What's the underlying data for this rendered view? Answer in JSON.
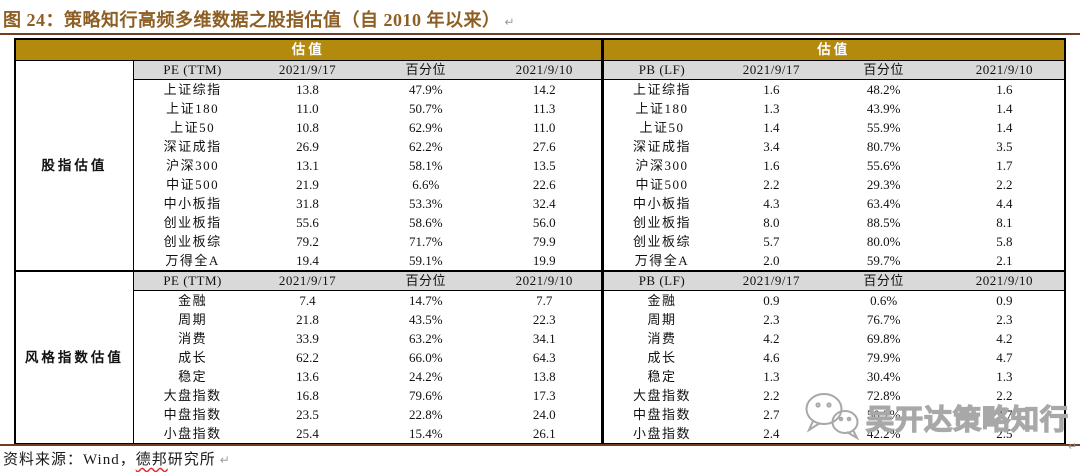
{
  "title": {
    "text": "图 24：策略知行高频多维数据之股指估值（自 2010 年以来）",
    "return_mark": "↵"
  },
  "colors": {
    "accent_gold": "#B3890E",
    "title_brown": "#8E5F24",
    "rule_brown": "#713E22",
    "header_gray": "#D9D9D9"
  },
  "table": {
    "band_left": "估值",
    "band_right": "估值",
    "sections": [
      {
        "name": "股指估值",
        "left_header": [
          "PE (TTM)",
          "2021/9/17",
          "百分位",
          "2021/9/10"
        ],
        "right_header": [
          "PB (LF)",
          "2021/9/17",
          "百分位",
          "2021/9/10"
        ],
        "rows": [
          {
            "label": "上证综指",
            "pe": [
              "13.8",
              "47.9%",
              "14.2"
            ],
            "pb": [
              "1.6",
              "48.2%",
              "1.6"
            ]
          },
          {
            "label": "上证180",
            "pe": [
              "11.0",
              "50.7%",
              "11.3"
            ],
            "pb": [
              "1.3",
              "43.9%",
              "1.4"
            ]
          },
          {
            "label": "上证50",
            "pe": [
              "10.8",
              "62.9%",
              "11.0"
            ],
            "pb": [
              "1.4",
              "55.9%",
              "1.4"
            ]
          },
          {
            "label": "深证成指",
            "pe": [
              "26.9",
              "62.2%",
              "27.6"
            ],
            "pb": [
              "3.4",
              "80.7%",
              "3.5"
            ]
          },
          {
            "label": "沪深300",
            "pe": [
              "13.1",
              "58.1%",
              "13.5"
            ],
            "pb": [
              "1.6",
              "55.6%",
              "1.7"
            ]
          },
          {
            "label": "中证500",
            "pe": [
              "21.9",
              "6.6%",
              "22.6"
            ],
            "pb": [
              "2.2",
              "29.3%",
              "2.2"
            ]
          },
          {
            "label": "中小板指",
            "pe": [
              "31.8",
              "53.3%",
              "32.4"
            ],
            "pb": [
              "4.3",
              "63.4%",
              "4.4"
            ]
          },
          {
            "label": "创业板指",
            "pe": [
              "55.6",
              "58.6%",
              "56.0"
            ],
            "pb": [
              "8.0",
              "88.5%",
              "8.1"
            ]
          },
          {
            "label": "创业板综",
            "pe": [
              "79.2",
              "71.7%",
              "79.9"
            ],
            "pb": [
              "5.7",
              "80.0%",
              "5.8"
            ]
          },
          {
            "label": "万得全A",
            "pe": [
              "19.4",
              "59.1%",
              "19.9"
            ],
            "pb": [
              "2.0",
              "59.7%",
              "2.1"
            ]
          }
        ]
      },
      {
        "name": "风格指数估值",
        "left_header": [
          "PE (TTM)",
          "2021/9/17",
          "百分位",
          "2021/9/10"
        ],
        "right_header": [
          "PB (LF)",
          "2021/9/17",
          "百分位",
          "2021/9/10"
        ],
        "rows": [
          {
            "label": "金融",
            "pe": [
              "7.4",
              "14.7%",
              "7.7"
            ],
            "pb": [
              "0.9",
              "0.6%",
              "0.9"
            ]
          },
          {
            "label": "周期",
            "pe": [
              "21.8",
              "43.5%",
              "22.3"
            ],
            "pb": [
              "2.3",
              "76.7%",
              "2.3"
            ]
          },
          {
            "label": "消费",
            "pe": [
              "33.9",
              "63.2%",
              "34.1"
            ],
            "pb": [
              "4.2",
              "69.8%",
              "4.2"
            ]
          },
          {
            "label": "成长",
            "pe": [
              "62.2",
              "66.0%",
              "64.3"
            ],
            "pb": [
              "4.6",
              "79.9%",
              "4.7"
            ]
          },
          {
            "label": "稳定",
            "pe": [
              "13.6",
              "24.2%",
              "13.8"
            ],
            "pb": [
              "1.3",
              "30.4%",
              "1.3"
            ]
          },
          {
            "label": "大盘指数",
            "pe": [
              "16.8",
              "79.6%",
              "17.3"
            ],
            "pb": [
              "2.2",
              "72.8%",
              "2.2"
            ]
          },
          {
            "label": "中盘指数",
            "pe": [
              "23.5",
              "22.8%",
              "24.0"
            ],
            "pb": [
              "2.7",
              "50.2%",
              "2.7"
            ]
          },
          {
            "label": "小盘指数",
            "pe": [
              "25.4",
              "15.4%",
              "26.1"
            ],
            "pb": [
              "2.4",
              "42.2%",
              "2.5"
            ]
          }
        ]
      }
    ]
  },
  "footer": {
    "source_prefix": "资料来源：Wind，",
    "source_wavy": "德邦",
    "source_suffix": "研究所",
    "return_mark": "↵"
  },
  "watermark": {
    "text": "吴开达策略知行",
    "icon": "wechat-icon"
  }
}
